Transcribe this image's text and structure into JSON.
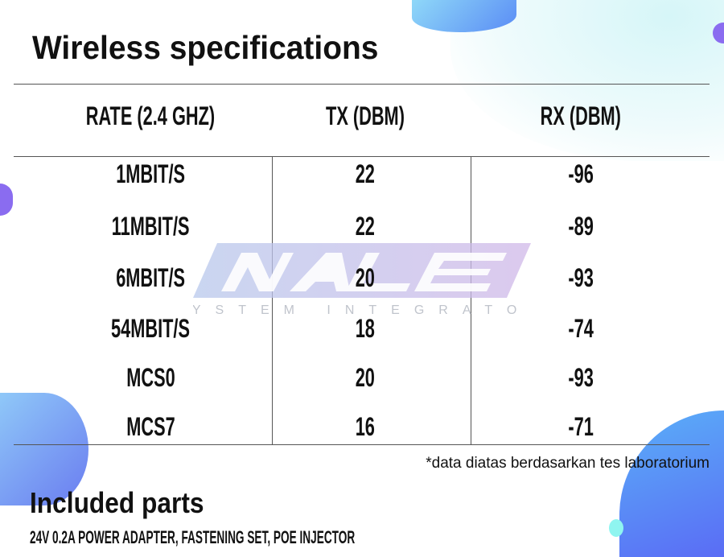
{
  "title": "Wireless specifications",
  "table": {
    "headers": [
      "RATE (2.4 GHZ)",
      "TX (DBM)",
      "RX (DBM)"
    ],
    "rows": [
      [
        "1MBIT/S",
        "22",
        "-96"
      ],
      [
        "11MBIT/S",
        "22",
        "-89"
      ],
      [
        "6MBIT/S",
        "20",
        "-93"
      ],
      [
        "54MBIT/S",
        "18",
        "-74"
      ],
      [
        "MCS0",
        "20",
        "-93"
      ],
      [
        "MCS7",
        "16",
        "-71"
      ]
    ]
  },
  "footnote": "*data diatas berdasarkan tes laboratorium",
  "included": {
    "title": "Included parts",
    "text": "24V 0.2A POWER ADAPTER, FASTENING SET, POE INJECTOR"
  },
  "watermark": {
    "logo": "NALE",
    "tagline": "SYSTEM INTEGRATOR"
  },
  "colors": {
    "blob_blue": "#5b8ef5",
    "blob_purple": "#8a6cf0",
    "blob_cyan": "#8ff5f0",
    "watermark": "#c8d0f0"
  }
}
